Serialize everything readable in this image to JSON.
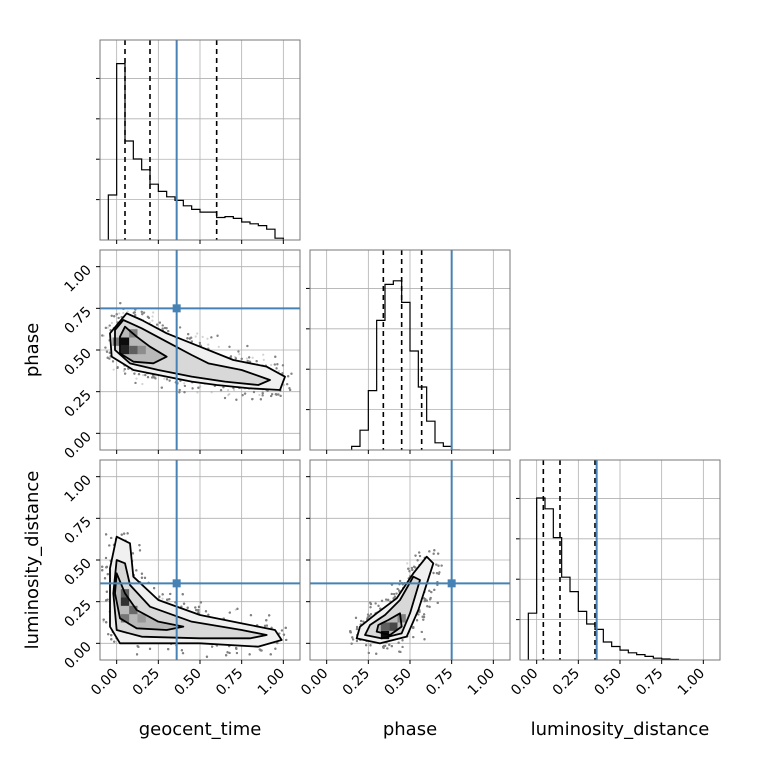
{
  "chart_data": {
    "type": "corner",
    "parameters": [
      "geocent_time",
      "phase",
      "luminosity_distance"
    ],
    "axis_labels": [
      "geocent_time",
      "phase",
      "luminosity_distance"
    ],
    "ranges": [
      [
        -0.1,
        1.1
      ],
      [
        -0.1,
        1.1
      ],
      [
        -0.1,
        1.1
      ]
    ],
    "ticks": [
      0.0,
      0.25,
      0.5,
      0.75,
      1.0
    ],
    "tick_labels": [
      "0.00",
      "0.25",
      "0.50",
      "0.75",
      "1.00"
    ],
    "grid": true,
    "truths": [
      0.36,
      0.75,
      0.36
    ],
    "colors": {
      "truth": "#4682b4",
      "hist": "#000000",
      "grid": "#b0b0b0",
      "points": "#808080"
    },
    "quantiles": [
      [
        0.05,
        0.2,
        0.6
      ],
      [
        0.34,
        0.45,
        0.57
      ],
      [
        0.04,
        0.14,
        0.35
      ]
    ],
    "histograms": [
      {
        "bins": [
          -0.05,
          0.0,
          0.05,
          0.1,
          0.15,
          0.2,
          0.25,
          0.3,
          0.35,
          0.4,
          0.45,
          0.5,
          0.55,
          0.6,
          0.65,
          0.7,
          0.75,
          0.8,
          0.85,
          0.9,
          0.95,
          1.0
        ],
        "counts": [
          0.25,
          0.98,
          0.55,
          0.45,
          0.39,
          0.31,
          0.27,
          0.24,
          0.22,
          0.19,
          0.17,
          0.155,
          0.155,
          0.125,
          0.13,
          0.12,
          0.1,
          0.09,
          0.08,
          0.06,
          0.01
        ]
      },
      {
        "bins": [
          0.15,
          0.2,
          0.25,
          0.3,
          0.35,
          0.4,
          0.45,
          0.5,
          0.55,
          0.6,
          0.65,
          0.7,
          0.75,
          0.8
        ],
        "counts": [
          0.02,
          0.11,
          0.33,
          0.72,
          0.92,
          0.94,
          0.82,
          0.55,
          0.35,
          0.16,
          0.04,
          0.02,
          0.0
        ]
      },
      {
        "bins": [
          -0.05,
          0.0,
          0.05,
          0.1,
          0.15,
          0.2,
          0.25,
          0.3,
          0.35,
          0.4,
          0.45,
          0.5,
          0.55,
          0.6,
          0.65,
          0.7,
          0.75,
          0.8,
          0.85
        ],
        "counts": [
          0.26,
          0.9,
          0.84,
          0.68,
          0.46,
          0.38,
          0.27,
          0.2,
          0.17,
          0.1,
          0.075,
          0.055,
          0.04,
          0.03,
          0.02,
          0.01,
          0.006,
          0.003
        ]
      }
    ],
    "pairs": [
      {
        "x_param": "geocent_time",
        "y_param": "phase",
        "contours": [
          [
            [
              0.06,
              0.72
            ],
            [
              0.15,
              0.68
            ],
            [
              0.3,
              0.6
            ],
            [
              0.5,
              0.52
            ],
            [
              0.7,
              0.44
            ],
            [
              0.9,
              0.4
            ],
            [
              1.01,
              0.34
            ],
            [
              0.98,
              0.26
            ],
            [
              0.8,
              0.27
            ],
            [
              0.6,
              0.29
            ],
            [
              0.45,
              0.31
            ],
            [
              0.25,
              0.35
            ],
            [
              0.1,
              0.38
            ],
            [
              -0.03,
              0.46
            ],
            [
              -0.04,
              0.6
            ]
          ],
          [
            [
              0.04,
              0.68
            ],
            [
              0.15,
              0.63
            ],
            [
              0.3,
              0.55
            ],
            [
              0.45,
              0.47
            ],
            [
              0.55,
              0.42
            ],
            [
              0.75,
              0.38
            ],
            [
              0.92,
              0.32
            ],
            [
              0.85,
              0.29
            ],
            [
              0.65,
              0.31
            ],
            [
              0.45,
              0.34
            ],
            [
              0.25,
              0.38
            ],
            [
              0.08,
              0.42
            ],
            [
              -0.01,
              0.5
            ],
            [
              -0.01,
              0.62
            ]
          ],
          [
            [
              0.05,
              0.64
            ],
            [
              0.12,
              0.58
            ],
            [
              0.2,
              0.52
            ],
            [
              0.3,
              0.46
            ],
            [
              0.22,
              0.42
            ],
            [
              0.1,
              0.43
            ],
            [
              0.02,
              0.48
            ],
            [
              0.02,
              0.58
            ]
          ]
        ],
        "density_cells": [
          [
            0.05,
            0.55,
            0.95
          ],
          [
            0.05,
            0.5,
            0.85
          ],
          [
            0.1,
            0.5,
            0.6
          ],
          [
            0.0,
            0.55,
            0.5
          ],
          [
            0.1,
            0.6,
            0.45
          ],
          [
            0.15,
            0.5,
            0.4
          ]
        ]
      },
      {
        "x_param": "geocent_time",
        "y_param": "luminosity_distance",
        "contours": [
          [
            [
              0.0,
              0.64
            ],
            [
              0.08,
              0.6
            ],
            [
              0.1,
              0.4
            ],
            [
              0.25,
              0.26
            ],
            [
              0.5,
              0.17
            ],
            [
              0.75,
              0.12
            ],
            [
              0.95,
              0.08
            ],
            [
              0.99,
              0.02
            ],
            [
              0.85,
              -0.02
            ],
            [
              0.5,
              0.0
            ],
            [
              0.2,
              0.0
            ],
            [
              0.02,
              0.0
            ],
            [
              -0.04,
              0.1
            ],
            [
              -0.04,
              0.45
            ]
          ],
          [
            [
              0.0,
              0.5
            ],
            [
              0.05,
              0.48
            ],
            [
              0.08,
              0.35
            ],
            [
              0.2,
              0.22
            ],
            [
              0.45,
              0.13
            ],
            [
              0.75,
              0.08
            ],
            [
              0.9,
              0.05
            ],
            [
              0.8,
              0.03
            ],
            [
              0.5,
              0.03
            ],
            [
              0.15,
              0.04
            ],
            [
              0.0,
              0.08
            ],
            [
              -0.02,
              0.3
            ]
          ],
          [
            [
              0.0,
              0.42
            ],
            [
              0.05,
              0.3
            ],
            [
              0.12,
              0.2
            ],
            [
              0.25,
              0.13
            ],
            [
              0.4,
              0.1
            ],
            [
              0.3,
              0.08
            ],
            [
              0.12,
              0.09
            ],
            [
              0.02,
              0.15
            ],
            [
              -0.01,
              0.3
            ]
          ]
        ],
        "density_cells": [
          [
            0.05,
            0.25,
            0.8
          ],
          [
            0.05,
            0.3,
            0.6
          ],
          [
            0.1,
            0.2,
            0.55
          ],
          [
            0.05,
            0.15,
            0.5
          ],
          [
            0.15,
            0.15,
            0.35
          ]
        ]
      },
      {
        "x_param": "phase",
        "y_param": "luminosity_distance",
        "contours": [
          [
            [
              0.18,
              0.03
            ],
            [
              0.32,
              0.0
            ],
            [
              0.48,
              0.04
            ],
            [
              0.55,
              0.2
            ],
            [
              0.64,
              0.48
            ],
            [
              0.6,
              0.52
            ],
            [
              0.52,
              0.42
            ],
            [
              0.42,
              0.27
            ],
            [
              0.3,
              0.18
            ],
            [
              0.2,
              0.1
            ]
          ],
          [
            [
              0.23,
              0.05
            ],
            [
              0.33,
              0.03
            ],
            [
              0.45,
              0.06
            ],
            [
              0.5,
              0.18
            ],
            [
              0.56,
              0.38
            ],
            [
              0.52,
              0.4
            ],
            [
              0.44,
              0.26
            ],
            [
              0.35,
              0.17
            ],
            [
              0.26,
              0.11
            ]
          ],
          [
            [
              0.3,
              0.07
            ],
            [
              0.38,
              0.05
            ],
            [
              0.45,
              0.1
            ],
            [
              0.44,
              0.18
            ],
            [
              0.37,
              0.14
            ],
            [
              0.31,
              0.11
            ]
          ]
        ],
        "density_cells": [
          [
            0.35,
            0.05,
            0.95
          ],
          [
            0.4,
            0.1,
            0.7
          ],
          [
            0.35,
            0.1,
            0.6
          ],
          [
            0.45,
            0.15,
            0.45
          ]
        ]
      }
    ]
  }
}
